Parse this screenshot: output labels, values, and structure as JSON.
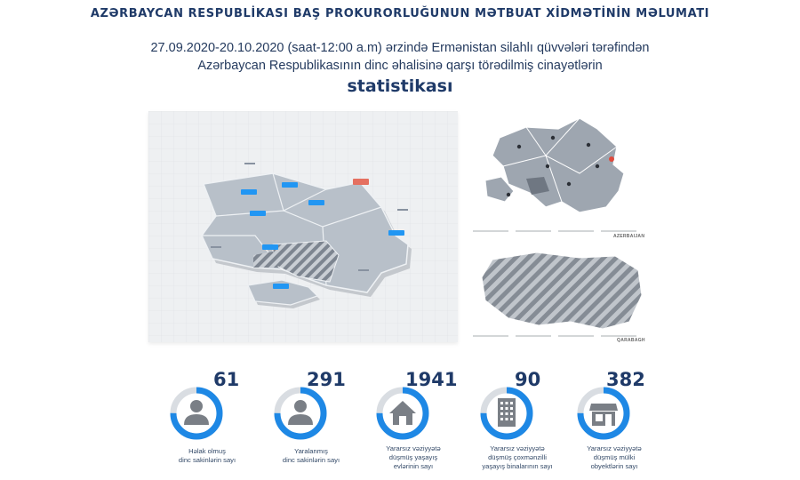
{
  "header": {
    "title": "AZƏRBAYCAN RESPUBLİKASI BAŞ PROKURORLUĞUNUN MƏTBUAT XİDMƏTİNİN MƏLUMATI"
  },
  "subtitle": {
    "line1": "27.09.2020-20.10.2020 (saat-12:00 a.m) ərzində Ermənistan silahlı qüvvələri tərəfindən",
    "line2": "Azərbaycan Respublikasının dinc əhalisinə qarşı törədilmiş cinayətlərin",
    "line3": "statistikası"
  },
  "maps": {
    "side_top_caption": "AZERBAIJAN",
    "side_bottom_caption": "QARABAGH"
  },
  "colors": {
    "accent": "#1e88e5",
    "ring_track": "#d9dde2",
    "icon_gray": "#7a7f86",
    "title": "#1f3a68"
  },
  "stats": [
    {
      "value": "61",
      "label": [
        "Həlak olmuş",
        "dinc sakinlərin sayı"
      ],
      "icon": "person-icon",
      "progress": 0.75
    },
    {
      "value": "291",
      "label": [
        "Yaralanmış",
        "dinc sakinlərin sayı"
      ],
      "icon": "person-icon",
      "progress": 0.75
    },
    {
      "value": "1941",
      "label": [
        "Yararsız vəziyyətə",
        "düşmüş yaşayış",
        "evlərinin sayı"
      ],
      "icon": "house-icon",
      "progress": 0.75
    },
    {
      "value": "90",
      "label": [
        "Yararsız vəziyyətə",
        "düşmüş çoxmənzilli",
        "yaşayış binalarının sayı"
      ],
      "icon": "building-icon",
      "progress": 0.75
    },
    {
      "value": "382",
      "label": [
        "Yararsız vəziyyətə",
        "düşmüş mülki",
        "obyektlərin sayı"
      ],
      "icon": "shop-icon",
      "progress": 0.75
    }
  ]
}
